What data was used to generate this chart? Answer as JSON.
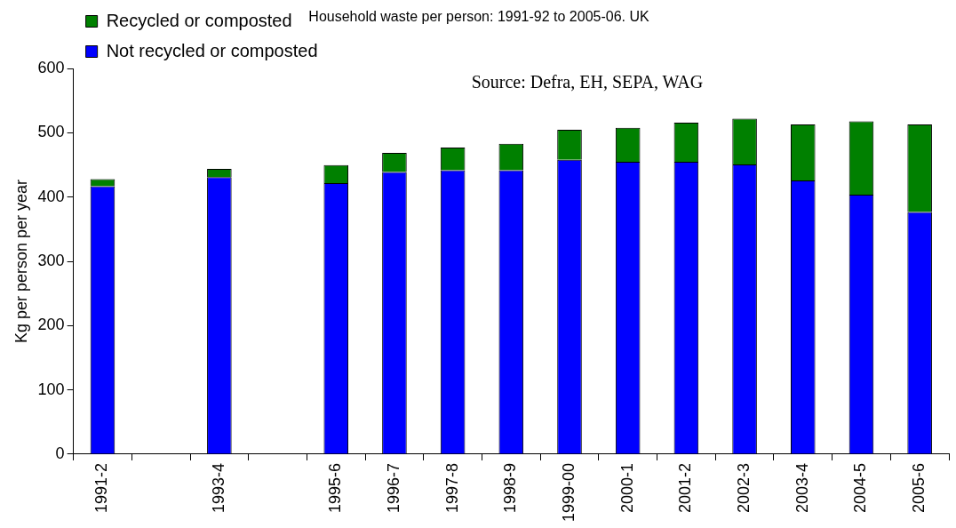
{
  "chart_data": {
    "type": "bar",
    "title": "Household waste per person: 1991-92 to 2005-06. UK",
    "ylabel": "Kg per person per year",
    "categories": [
      "1991-2",
      null,
      "1993-4",
      null,
      "1995-6",
      "1996-7",
      "1997-8",
      "1998-9",
      "1999-00",
      "2000-1",
      "2001-2",
      "2002-3",
      "2003-4",
      "2004-5",
      "2005-6"
    ],
    "series": [
      {
        "name": "Not recycled or composted",
        "color": "#0000ff",
        "values": [
          417,
          null,
          431,
          null,
          422,
          439,
          442,
          442,
          458,
          455,
          455,
          451,
          426,
          404,
          377
        ]
      },
      {
        "name": "Recycled or composted",
        "color": "#008000",
        "values": [
          11,
          null,
          13,
          null,
          28,
          30,
          35,
          41,
          47,
          53,
          61,
          71,
          87,
          114,
          136
        ]
      }
    ],
    "stacked": true,
    "ylim": [
      0,
      600
    ],
    "yticks": [
      0,
      100,
      200,
      300,
      400,
      500,
      600
    ],
    "grid": false,
    "legend": "top left",
    "annotations": [
      "Source: Defra, EH, SEPA, WAG"
    ]
  }
}
